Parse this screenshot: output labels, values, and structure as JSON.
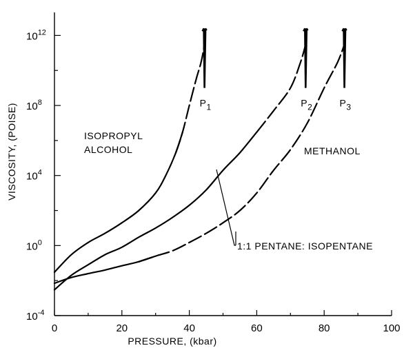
{
  "chart_data": {
    "type": "line",
    "title": "",
    "xlabel": "PRESSURE, (kbar)",
    "ylabel": "VISCOSITY, (POISE)",
    "x_scale": "linear",
    "y_scale": "log",
    "xlim": [
      0,
      100
    ],
    "ylim": [
      0.0001,
      10000000000000
    ],
    "grid": false,
    "x_ticks": [
      {
        "value": 0,
        "label": "0"
      },
      {
        "value": 20,
        "label": "20"
      },
      {
        "value": 40,
        "label": "40"
      },
      {
        "value": 60,
        "label": "60"
      },
      {
        "value": 80,
        "label": "80"
      },
      {
        "value": 100,
        "label": "100"
      }
    ],
    "y_ticks": [
      {
        "value": 0.0001,
        "base": "10",
        "exp": "-4"
      },
      {
        "value": 1,
        "base": "10",
        "exp": "0"
      },
      {
        "value": 10000,
        "base": "10",
        "exp": "4"
      },
      {
        "value": 100000000,
        "base": "10",
        "exp": "8"
      },
      {
        "value": 1000000000000,
        "base": "10",
        "exp": "12"
      }
    ],
    "series": [
      {
        "label_lines": [
          "ISOPROPYL",
          "ALCOHOL"
        ],
        "x": [
          0,
          5,
          10,
          15,
          20,
          25,
          30,
          33,
          36,
          38,
          40,
          42,
          43.5,
          44.5
        ],
        "y": [
          0.03,
          0.3,
          1.5,
          5,
          20,
          100,
          1000,
          10000,
          200000,
          3000000,
          100000000,
          3000000000,
          30000000000,
          300000000000
        ],
        "dashed_from_x": 39
      },
      {
        "label_lines": [
          "METHANOL"
        ],
        "x": [
          0,
          5,
          10,
          15,
          20,
          25,
          30,
          35,
          40,
          45,
          50,
          55,
          60,
          65,
          70,
          73,
          74.5
        ],
        "y": [
          0.003,
          0.02,
          0.08,
          0.3,
          0.8,
          3,
          10,
          40,
          200,
          1500,
          20000,
          200000,
          3000000,
          50000000,
          1000000000,
          30000000000,
          300000000000
        ],
        "dashed_from_x": 64
      },
      {
        "label_lines": [
          "1:1 PENTANE: ISOPENTANE"
        ],
        "x": [
          0,
          5,
          10,
          15,
          20,
          25,
          30,
          35,
          40,
          45,
          50,
          55,
          60,
          65,
          70,
          75,
          80,
          84,
          86
        ],
        "y": [
          0.007,
          0.015,
          0.025,
          0.04,
          0.07,
          0.12,
          0.25,
          0.5,
          1.5,
          5,
          20,
          100,
          1000,
          20000,
          300000,
          10000000,
          1000000000,
          30000000000,
          300000000000
        ],
        "dashed_from_x": 30
      }
    ],
    "annotations": [
      {
        "text": "P",
        "sub": "1",
        "x": 44.5
      },
      {
        "text": "P",
        "sub": "2",
        "x": 74.5
      },
      {
        "text": "P",
        "sub": "3",
        "x": 86
      }
    ],
    "spike_top": 2500000000000,
    "spike_bottom": 1000000000
  }
}
